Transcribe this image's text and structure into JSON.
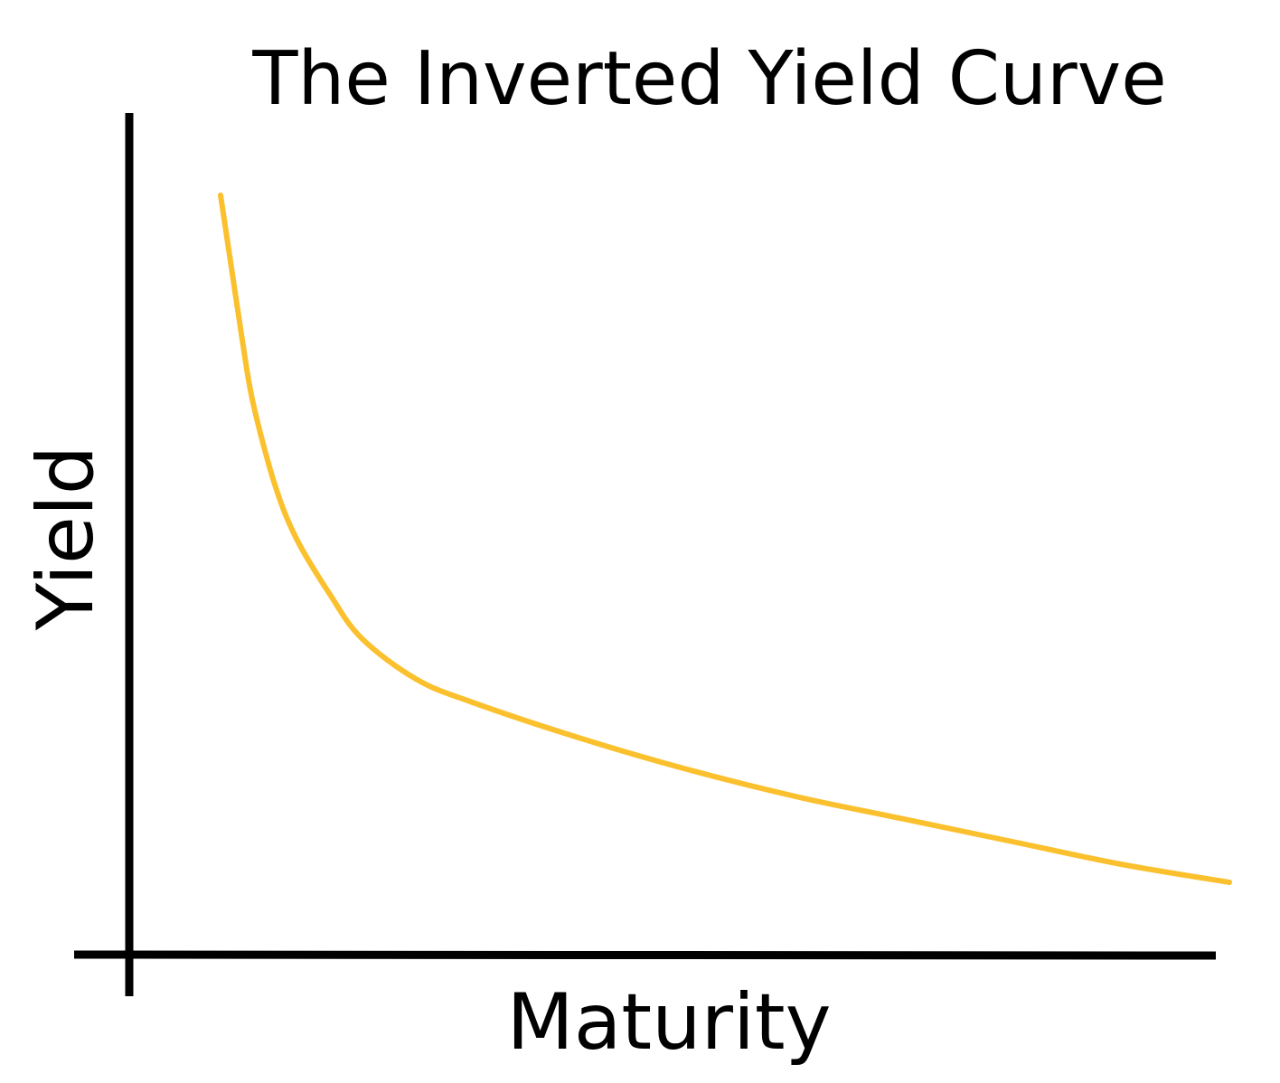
{
  "chart_data": {
    "type": "line",
    "title": "The Inverted Yield Curve",
    "xlabel": "Maturity",
    "ylabel": "Yield",
    "x_ticks": [],
    "y_ticks": [],
    "grid": false,
    "legend": "none",
    "xlim": [
      0,
      100
    ],
    "ylim": [
      0,
      100
    ],
    "series": [
      {
        "color": "#FBC02D",
        "x": [
          7,
          8,
          9,
          10,
          12,
          14,
          17,
          20,
          25,
          30,
          40,
          50,
          60,
          70,
          80,
          90,
          100
        ],
        "y": [
          84,
          76,
          68,
          61,
          52,
          46,
          40,
          35,
          30.5,
          28,
          24,
          20.5,
          17.5,
          15,
          12.5,
          10,
          8
        ]
      }
    ]
  }
}
